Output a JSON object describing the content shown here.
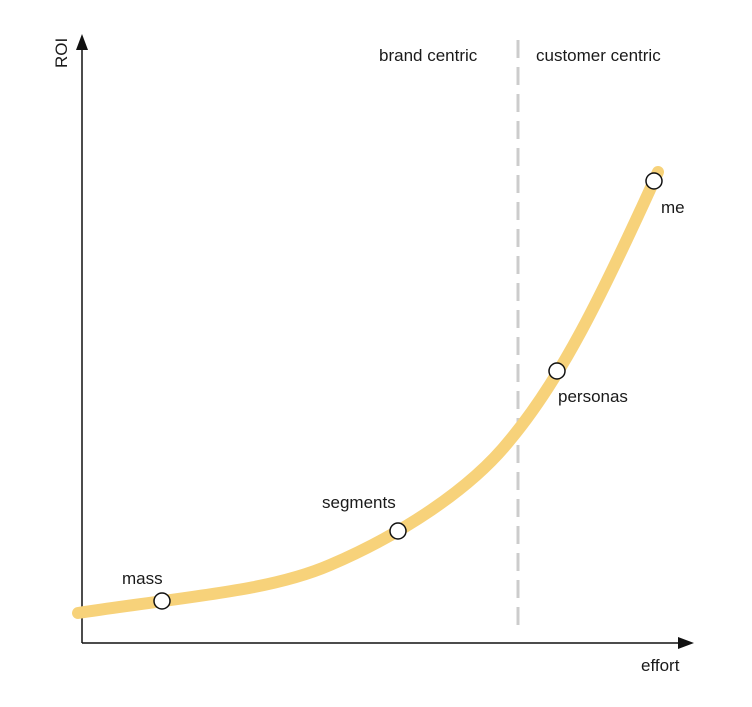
{
  "axes": {
    "y_label": "ROI",
    "x_label": "effort"
  },
  "regions": {
    "left": "brand centric",
    "right": "customer centric"
  },
  "points": [
    {
      "label": "mass"
    },
    {
      "label": "segments"
    },
    {
      "label": "personas"
    },
    {
      "label": "me"
    }
  ],
  "colors": {
    "curve": "#f7d27a",
    "axis": "#111111",
    "divider": "#cccccc",
    "marker_fill": "#ffffff",
    "marker_stroke": "#111111",
    "text": "#1a1a1a"
  }
}
